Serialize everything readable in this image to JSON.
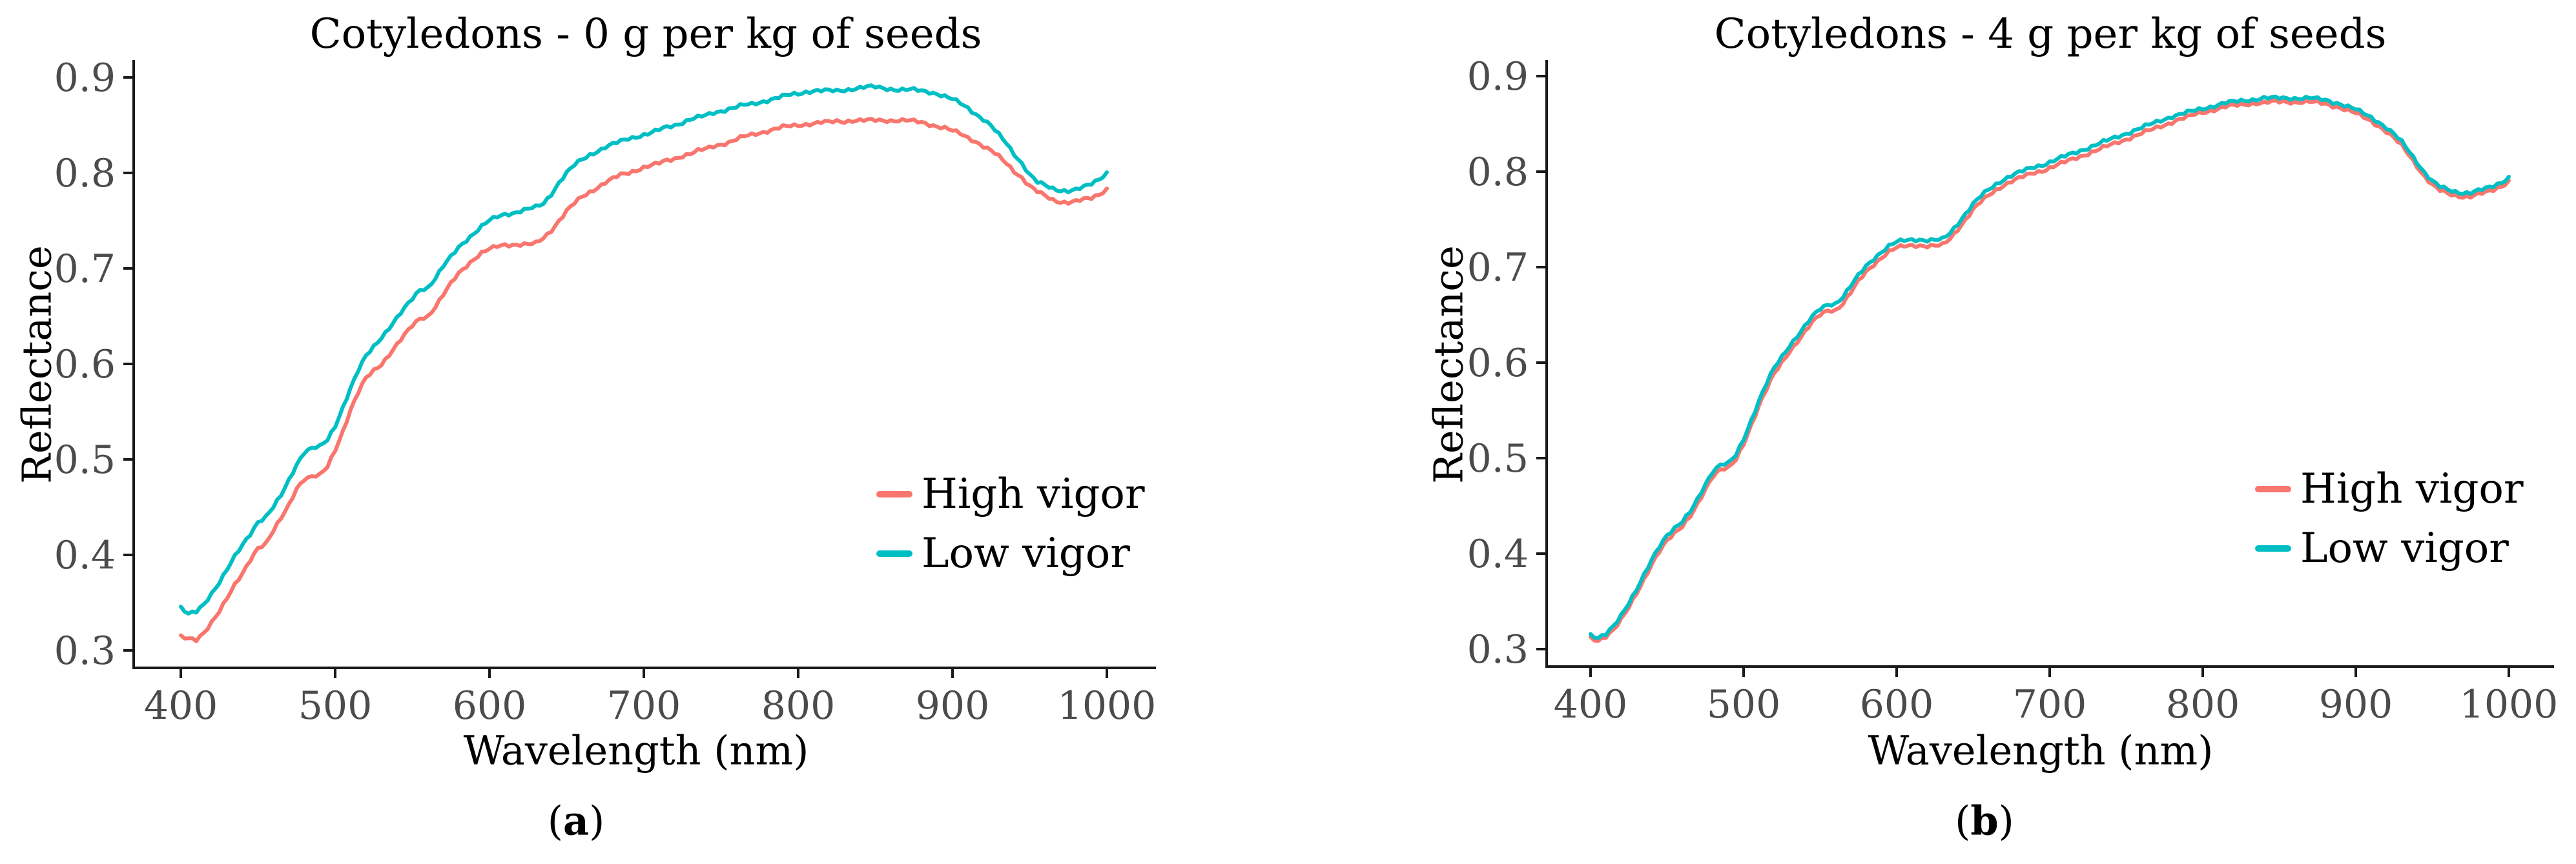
{
  "figure": {
    "panel_count": 2,
    "background": "#ffffff",
    "axis_color": "#1a1a1a",
    "tick_text_color": "#4b4b4b"
  },
  "chart_data": [
    {
      "type": "line",
      "panel_id": "a",
      "title": "Cotyledons - 0 g per kg of seeds",
      "xlabel": "Wavelength (nm)",
      "ylabel": "Reflectance",
      "caption": {
        "open": "(",
        "letter": "a",
        "close": ")"
      },
      "xlim": [
        369,
        1032
      ],
      "ylim": [
        0.282,
        0.918
      ],
      "x_ticks": [
        "400",
        "500",
        "600",
        "700",
        "800",
        "900",
        "1000"
      ],
      "y_ticks": [
        "0.3",
        "0.4",
        "0.5",
        "0.6",
        "0.7",
        "0.8",
        "0.9"
      ],
      "grid": false,
      "legend_position": "inside-right",
      "x": [
        400,
        405,
        410,
        415,
        420,
        425,
        430,
        435,
        440,
        445,
        450,
        455,
        460,
        465,
        470,
        475,
        480,
        485,
        490,
        495,
        500,
        505,
        510,
        515,
        520,
        525,
        530,
        535,
        540,
        545,
        550,
        555,
        560,
        565,
        570,
        575,
        580,
        585,
        590,
        595,
        600,
        605,
        610,
        615,
        620,
        625,
        630,
        635,
        640,
        645,
        650,
        655,
        660,
        665,
        670,
        675,
        680,
        685,
        690,
        695,
        700,
        705,
        710,
        715,
        720,
        725,
        730,
        735,
        740,
        745,
        750,
        755,
        760,
        765,
        770,
        775,
        780,
        785,
        790,
        795,
        800,
        805,
        810,
        815,
        820,
        825,
        830,
        835,
        840,
        845,
        850,
        855,
        860,
        865,
        870,
        875,
        880,
        885,
        890,
        895,
        900,
        905,
        910,
        915,
        920,
        925,
        930,
        935,
        940,
        945,
        950,
        955,
        960,
        965,
        970,
        975,
        980,
        985,
        990,
        995,
        1000
      ],
      "series": [
        {
          "name": "High vigor",
          "color": "#F8766D",
          "values": [
            0.315,
            0.312,
            0.31,
            0.318,
            0.33,
            0.342,
            0.355,
            0.368,
            0.38,
            0.395,
            0.408,
            0.412,
            0.425,
            0.438,
            0.452,
            0.47,
            0.48,
            0.482,
            0.483,
            0.492,
            0.51,
            0.53,
            0.552,
            0.57,
            0.585,
            0.593,
            0.6,
            0.61,
            0.62,
            0.63,
            0.64,
            0.648,
            0.65,
            0.66,
            0.672,
            0.684,
            0.695,
            0.703,
            0.71,
            0.716,
            0.72,
            0.723,
            0.725,
            0.725,
            0.725,
            0.725,
            0.726,
            0.732,
            0.74,
            0.75,
            0.76,
            0.768,
            0.775,
            0.78,
            0.785,
            0.79,
            0.794,
            0.798,
            0.8,
            0.803,
            0.806,
            0.808,
            0.81,
            0.813,
            0.815,
            0.818,
            0.82,
            0.823,
            0.825,
            0.828,
            0.83,
            0.832,
            0.835,
            0.838,
            0.84,
            0.842,
            0.844,
            0.846,
            0.848,
            0.849,
            0.85,
            0.851,
            0.852,
            0.853,
            0.853,
            0.854,
            0.854,
            0.855,
            0.855,
            0.855,
            0.855,
            0.855,
            0.855,
            0.855,
            0.855,
            0.854,
            0.853,
            0.851,
            0.849,
            0.847,
            0.844,
            0.841,
            0.837,
            0.833,
            0.828,
            0.823,
            0.817,
            0.81,
            0.802,
            0.795,
            0.786,
            0.78,
            0.776,
            0.772,
            0.77,
            0.769,
            0.77,
            0.772,
            0.774,
            0.778,
            0.783
          ]
        },
        {
          "name": "Low vigor",
          "color": "#00BFC4",
          "values": [
            0.345,
            0.338,
            0.34,
            0.348,
            0.36,
            0.372,
            0.385,
            0.398,
            0.41,
            0.422,
            0.435,
            0.44,
            0.45,
            0.462,
            0.478,
            0.495,
            0.508,
            0.512,
            0.513,
            0.52,
            0.535,
            0.555,
            0.575,
            0.593,
            0.608,
            0.618,
            0.628,
            0.638,
            0.648,
            0.658,
            0.668,
            0.678,
            0.68,
            0.69,
            0.702,
            0.712,
            0.722,
            0.73,
            0.737,
            0.744,
            0.75,
            0.754,
            0.757,
            0.758,
            0.76,
            0.762,
            0.764,
            0.768,
            0.778,
            0.79,
            0.8,
            0.808,
            0.814,
            0.819,
            0.823,
            0.827,
            0.83,
            0.833,
            0.836,
            0.838,
            0.84,
            0.842,
            0.845,
            0.848,
            0.85,
            0.853,
            0.856,
            0.858,
            0.86,
            0.863,
            0.865,
            0.867,
            0.869,
            0.871,
            0.872,
            0.874,
            0.876,
            0.878,
            0.88,
            0.882,
            0.883,
            0.885,
            0.886,
            0.886,
            0.886,
            0.886,
            0.887,
            0.888,
            0.889,
            0.89,
            0.89,
            0.889,
            0.888,
            0.887,
            0.887,
            0.887,
            0.886,
            0.885,
            0.883,
            0.88,
            0.877,
            0.873,
            0.868,
            0.862,
            0.856,
            0.849,
            0.84,
            0.831,
            0.82,
            0.81,
            0.798,
            0.79,
            0.787,
            0.784,
            0.782,
            0.781,
            0.782,
            0.785,
            0.789,
            0.794,
            0.8
          ]
        }
      ]
    },
    {
      "type": "line",
      "panel_id": "b",
      "title": "Cotyledons - 4 g per kg of seeds",
      "xlabel": "Wavelength (nm)",
      "ylabel": "Reflectance",
      "caption": {
        "open": "(",
        "letter": "b",
        "close": ")"
      },
      "xlim": [
        369,
        1032
      ],
      "ylim": [
        0.282,
        0.918
      ],
      "x_ticks": [
        "400",
        "500",
        "600",
        "700",
        "800",
        "900",
        "1000"
      ],
      "y_ticks": [
        "0.3",
        "0.4",
        "0.5",
        "0.6",
        "0.7",
        "0.8",
        "0.9"
      ],
      "grid": false,
      "legend_position": "inside-right",
      "x": [
        400,
        405,
        410,
        415,
        420,
        425,
        430,
        435,
        440,
        445,
        450,
        455,
        460,
        465,
        470,
        475,
        480,
        485,
        490,
        495,
        500,
        505,
        510,
        515,
        520,
        525,
        530,
        535,
        540,
        545,
        550,
        555,
        560,
        565,
        570,
        575,
        580,
        585,
        590,
        595,
        600,
        605,
        610,
        615,
        620,
        625,
        630,
        635,
        640,
        645,
        650,
        655,
        660,
        665,
        670,
        675,
        680,
        685,
        690,
        695,
        700,
        705,
        710,
        715,
        720,
        725,
        730,
        735,
        740,
        745,
        750,
        755,
        760,
        765,
        770,
        775,
        780,
        785,
        790,
        795,
        800,
        805,
        810,
        815,
        820,
        825,
        830,
        835,
        840,
        845,
        850,
        855,
        860,
        865,
        870,
        875,
        880,
        885,
        890,
        895,
        900,
        905,
        910,
        915,
        920,
        925,
        930,
        935,
        940,
        945,
        950,
        955,
        960,
        965,
        970,
        975,
        980,
        985,
        990,
        995,
        1000
      ],
      "series": [
        {
          "name": "High vigor",
          "color": "#F8766D",
          "values": [
            0.312,
            0.308,
            0.312,
            0.32,
            0.332,
            0.345,
            0.358,
            0.372,
            0.388,
            0.403,
            0.415,
            0.422,
            0.428,
            0.438,
            0.452,
            0.468,
            0.482,
            0.488,
            0.489,
            0.498,
            0.515,
            0.535,
            0.555,
            0.572,
            0.588,
            0.6,
            0.612,
            0.622,
            0.632,
            0.642,
            0.65,
            0.655,
            0.655,
            0.662,
            0.673,
            0.685,
            0.695,
            0.703,
            0.71,
            0.716,
            0.72,
            0.722,
            0.723,
            0.723,
            0.722,
            0.722,
            0.723,
            0.73,
            0.74,
            0.75,
            0.76,
            0.768,
            0.775,
            0.781,
            0.786,
            0.79,
            0.793,
            0.796,
            0.799,
            0.801,
            0.804,
            0.807,
            0.81,
            0.813,
            0.816,
            0.819,
            0.822,
            0.825,
            0.828,
            0.831,
            0.834,
            0.837,
            0.84,
            0.843,
            0.846,
            0.849,
            0.852,
            0.855,
            0.857,
            0.86,
            0.862,
            0.864,
            0.866,
            0.868,
            0.869,
            0.87,
            0.871,
            0.872,
            0.872,
            0.873,
            0.873,
            0.873,
            0.873,
            0.873,
            0.873,
            0.872,
            0.871,
            0.869,
            0.867,
            0.864,
            0.861,
            0.857,
            0.853,
            0.848,
            0.842,
            0.835,
            0.827,
            0.817,
            0.806,
            0.795,
            0.786,
            0.78,
            0.777,
            0.775,
            0.774,
            0.774,
            0.776,
            0.778,
            0.781,
            0.785,
            0.79
          ]
        },
        {
          "name": "Low vigor",
          "color": "#00BFC4",
          "values": [
            0.315,
            0.311,
            0.315,
            0.324,
            0.336,
            0.349,
            0.362,
            0.377,
            0.393,
            0.408,
            0.42,
            0.427,
            0.433,
            0.443,
            0.457,
            0.473,
            0.487,
            0.493,
            0.494,
            0.503,
            0.52,
            0.54,
            0.56,
            0.578,
            0.594,
            0.606,
            0.618,
            0.628,
            0.638,
            0.648,
            0.656,
            0.661,
            0.662,
            0.669,
            0.68,
            0.691,
            0.701,
            0.709,
            0.716,
            0.722,
            0.726,
            0.728,
            0.729,
            0.729,
            0.728,
            0.728,
            0.729,
            0.736,
            0.746,
            0.756,
            0.766,
            0.774,
            0.781,
            0.787,
            0.792,
            0.796,
            0.799,
            0.802,
            0.805,
            0.807,
            0.81,
            0.813,
            0.816,
            0.819,
            0.822,
            0.825,
            0.828,
            0.831,
            0.834,
            0.837,
            0.84,
            0.843,
            0.846,
            0.849,
            0.852,
            0.855,
            0.858,
            0.86,
            0.862,
            0.864,
            0.866,
            0.868,
            0.87,
            0.872,
            0.873,
            0.874,
            0.875,
            0.876,
            0.877,
            0.877,
            0.877,
            0.877,
            0.877,
            0.877,
            0.877,
            0.876,
            0.875,
            0.873,
            0.871,
            0.868,
            0.865,
            0.861,
            0.857,
            0.852,
            0.846,
            0.839,
            0.831,
            0.821,
            0.81,
            0.799,
            0.79,
            0.784,
            0.781,
            0.779,
            0.778,
            0.778,
            0.78,
            0.782,
            0.785,
            0.789,
            0.794
          ]
        }
      ]
    }
  ]
}
